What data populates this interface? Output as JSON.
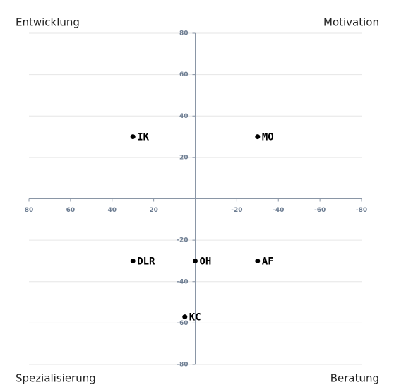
{
  "chart_data": {
    "type": "scatter",
    "x": [
      30,
      -30,
      30,
      0,
      -30,
      5
    ],
    "values": [
      30,
      30,
      -30,
      -30,
      -30,
      -57
    ],
    "labels": [
      "IK",
      "MO",
      "DLR",
      "OH",
      "AF",
      "KC"
    ],
    "color": "#000000",
    "xlim": [
      80,
      -80
    ],
    "ylim": [
      -80,
      80
    ],
    "xticks": [
      80,
      60,
      40,
      20,
      -20,
      -40,
      -60,
      -80
    ],
    "yticks": [
      80,
      60,
      40,
      20,
      -20,
      -40,
      -60,
      -80
    ],
    "grid": "y",
    "annotations": [
      {
        "text": "Entwicklung",
        "position": "top-left"
      },
      {
        "text": "Motivation",
        "position": "top-right"
      },
      {
        "text": "Spezialisierung",
        "position": "bottom-left"
      },
      {
        "text": "Beratung",
        "position": "bottom-right"
      }
    ]
  }
}
